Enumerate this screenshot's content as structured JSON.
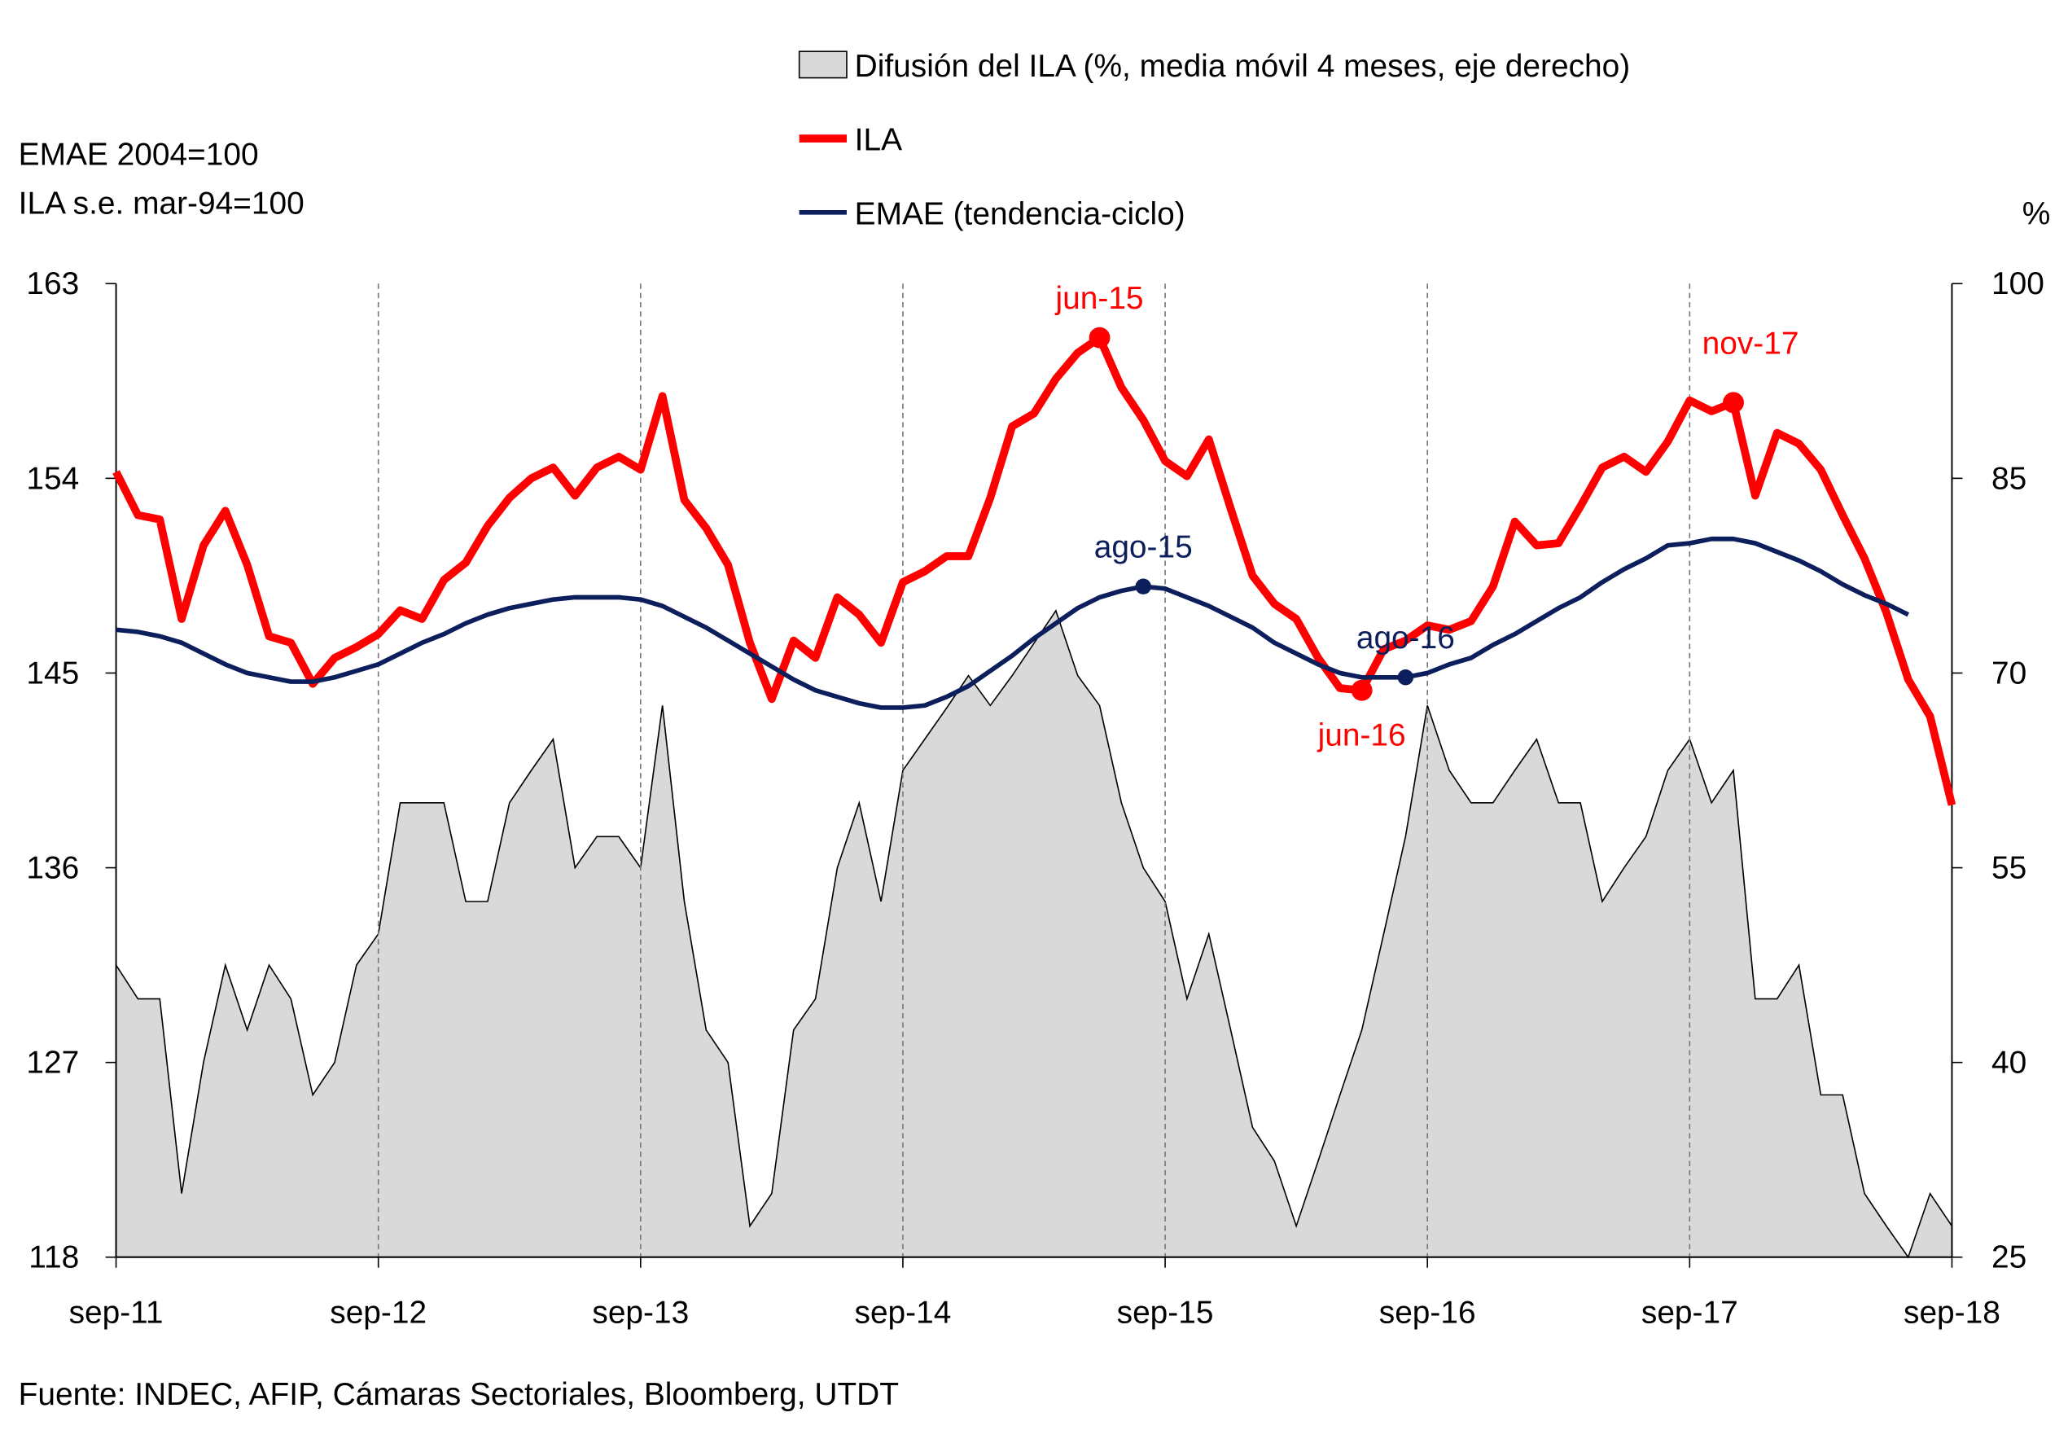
{
  "chart_data": {
    "type": "line",
    "x_labels": [
      "sep-11",
      "sep-12",
      "sep-13",
      "sep-14",
      "sep-15",
      "sep-16",
      "sep-17",
      "sep-18"
    ],
    "x_start": "sep-11",
    "x_end": "sep-18",
    "months": 85,
    "left_axis": {
      "title_lines": [
        "EMAE 2004=100",
        "ILA s.e. mar-94=100"
      ],
      "range": [
        118,
        163
      ],
      "ticks": [
        163,
        154,
        145,
        136,
        127,
        118
      ]
    },
    "right_axis": {
      "title": "%",
      "range": [
        25,
        100
      ],
      "ticks": [
        100,
        85,
        70,
        55,
        40,
        25
      ]
    },
    "legend": [
      {
        "label": "Difusión del ILA (%, media móvil 4 meses, eje derecho)",
        "type": "area"
      },
      {
        "label": "ILA",
        "type": "line"
      },
      {
        "label": "EMAE (tendencia-ciclo)",
        "type": "line"
      }
    ],
    "series": [
      {
        "name": "Difusión del ILA",
        "axis": "right",
        "color": "#d9d9d9",
        "values": [
          47.5,
          44.9,
          44.9,
          29.9,
          40.0,
          47.5,
          42.5,
          47.5,
          44.9,
          37.5,
          40.0,
          47.5,
          49.9,
          60.0,
          60.0,
          60.0,
          52.4,
          52.4,
          60.0,
          62.5,
          64.9,
          55.0,
          57.4,
          57.4,
          55.0,
          67.5,
          52.4,
          42.5,
          40.0,
          27.4,
          29.9,
          42.5,
          44.9,
          55.0,
          60.0,
          52.4,
          62.5,
          64.9,
          67.3,
          69.8,
          67.5,
          69.8,
          72.3,
          74.8,
          69.8,
          67.5,
          60.0,
          55.0,
          52.4,
          44.9,
          49.9,
          42.5,
          35.0,
          32.4,
          27.4,
          32.4,
          37.5,
          42.5,
          49.9,
          57.4,
          67.5,
          62.5,
          60.0,
          60.0,
          62.5,
          64.9,
          60.0,
          60.0,
          52.4,
          55.0,
          57.4,
          62.5,
          64.9,
          60.0,
          62.5,
          44.9,
          44.9,
          47.5,
          37.5,
          37.5,
          29.9,
          27.4,
          25.0,
          29.9,
          27.4
        ]
      },
      {
        "name": "ILA",
        "axis": "left",
        "color": "#ff0000",
        "values": [
          154.3,
          152.3,
          152.1,
          147.5,
          150.9,
          152.5,
          150.0,
          146.7,
          146.4,
          144.5,
          145.7,
          146.2,
          146.8,
          147.9,
          147.5,
          149.3,
          150.1,
          151.8,
          153.1,
          154.0,
          154.5,
          153.2,
          154.5,
          155.0,
          154.4,
          157.8,
          153.0,
          151.7,
          150.0,
          146.4,
          143.8,
          146.5,
          145.7,
          148.5,
          147.7,
          146.4,
          149.2,
          149.7,
          150.4,
          150.4,
          153.1,
          156.4,
          157.0,
          158.6,
          159.8,
          160.5,
          158.2,
          156.7,
          154.8,
          154.1,
          155.8,
          152.6,
          149.5,
          148.2,
          147.5,
          145.7,
          144.3,
          144.2,
          146.1,
          146.5,
          147.2,
          147.0,
          147.4,
          149.0,
          152.0,
          150.9,
          151.0,
          152.7,
          154.5,
          155.0,
          154.3,
          155.7,
          157.6,
          157.1,
          157.5,
          153.2,
          156.1,
          155.6,
          154.4,
          152.3,
          150.3,
          147.8,
          144.7,
          143.0,
          138.9
        ]
      },
      {
        "name": "EMAE (tendencia-ciclo)",
        "axis": "left",
        "color": "#0c1f5c",
        "values": [
          147.0,
          146.9,
          146.7,
          146.4,
          145.9,
          145.4,
          145.0,
          144.8,
          144.6,
          144.6,
          144.8,
          145.1,
          145.4,
          145.9,
          146.4,
          146.8,
          147.3,
          147.7,
          148.0,
          148.2,
          148.4,
          148.5,
          148.5,
          148.5,
          148.4,
          148.1,
          147.6,
          147.1,
          146.5,
          145.9,
          145.3,
          144.7,
          144.2,
          143.9,
          143.6,
          143.4,
          143.4,
          143.5,
          143.9,
          144.4,
          145.1,
          145.8,
          146.6,
          147.3,
          148.0,
          148.5,
          148.8,
          149.0,
          148.9,
          148.5,
          148.1,
          147.6,
          147.1,
          146.4,
          145.9,
          145.4,
          145.0,
          144.8,
          144.8,
          144.8,
          145.0,
          145.4,
          145.7,
          146.3,
          146.8,
          147.4,
          148.0,
          148.5,
          149.2,
          149.8,
          150.3,
          150.9,
          151.0,
          151.2,
          151.2,
          151.0,
          150.6,
          150.2,
          149.7,
          149.1,
          148.6,
          148.2,
          147.7
        ]
      }
    ],
    "annotations": [
      {
        "label": "jun-15",
        "series": "ILA",
        "index": 45,
        "position": "above"
      },
      {
        "label": "jun-16",
        "series": "ILA",
        "index": 57,
        "position": "below"
      },
      {
        "label": "nov-17",
        "series": "ILA",
        "index": 74,
        "position": "above"
      },
      {
        "label": "ago-15",
        "series": "EMAE (tendencia-ciclo)",
        "index": 47,
        "position": "above"
      },
      {
        "label": "ago-16",
        "series": "EMAE (tendencia-ciclo)",
        "index": 59,
        "position": "above"
      }
    ],
    "grid": "vertical dashed at each sep",
    "legend_placement": "top-center"
  },
  "source": "Fuente: INDEC, AFIP, Cámaras Sectoriales, Bloomberg,  UTDT"
}
